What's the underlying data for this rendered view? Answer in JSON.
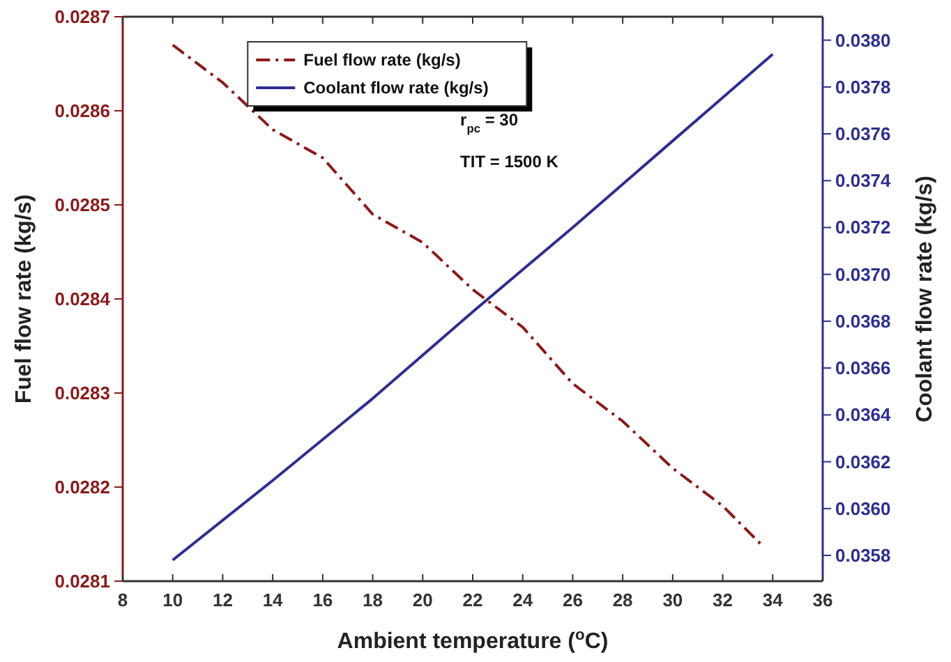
{
  "chart_data": {
    "type": "line",
    "xlabel": "Ambient temperature ($^{o}$C)",
    "ylabel": "Fuel flow rate (kg/s)",
    "y2label": "Coolant flow rate (kg/s)",
    "xlim": [
      8,
      36
    ],
    "xticks": [
      8,
      10,
      12,
      14,
      16,
      18,
      20,
      22,
      24,
      26,
      28,
      30,
      32,
      34,
      36
    ],
    "ylim": [
      0.0281,
      0.0287
    ],
    "yticks": [
      0.0281,
      0.0282,
      0.0283,
      0.0284,
      0.0285,
      0.0286,
      0.0287
    ],
    "y2lim": [
      0.03569,
      0.0381
    ],
    "y2ticks": [
      0.0358,
      {
        "value": 0.036,
        "label": "0.0360"
      },
      0.0362,
      0.0364,
      0.0366,
      0.0368,
      {
        "value": 0.037,
        "label": "0.0370"
      },
      0.0372,
      0.0374,
      0.0376,
      0.0378,
      {
        "value": 0.038,
        "label": "0.0380"
      }
    ],
    "legend": "top",
    "grid": false,
    "marker": "none",
    "annotations": [
      "r$_{pc}$ = 30",
      "TIT = 1500 K"
    ],
    "series": [
      {
        "name": "Fuel flow rate (kg/s)",
        "color": "#8b1a1a",
        "line_style": "dashed",
        "x": [
          10,
          12,
          14,
          16,
          18,
          20,
          22,
          24,
          26,
          28,
          30,
          32,
          33.5
        ],
        "values": [
          0.02867,
          0.02863,
          0.02858,
          0.02855,
          0.02849,
          0.02846,
          0.02841,
          0.02837,
          0.02831,
          0.02827,
          0.02822,
          0.02818,
          0.02814
        ]
      },
      {
        "name": "Coolant flow rate (kg/s)",
        "color": "#2e2e8f",
        "axis": "y2",
        "line_style": "solid",
        "x": [
          10,
          14,
          18,
          22,
          26,
          30,
          34
        ],
        "values": [
          0.03578,
          0.03612,
          0.03647,
          0.03684,
          0.0372,
          0.03757,
          0.03794
        ]
      }
    ]
  }
}
